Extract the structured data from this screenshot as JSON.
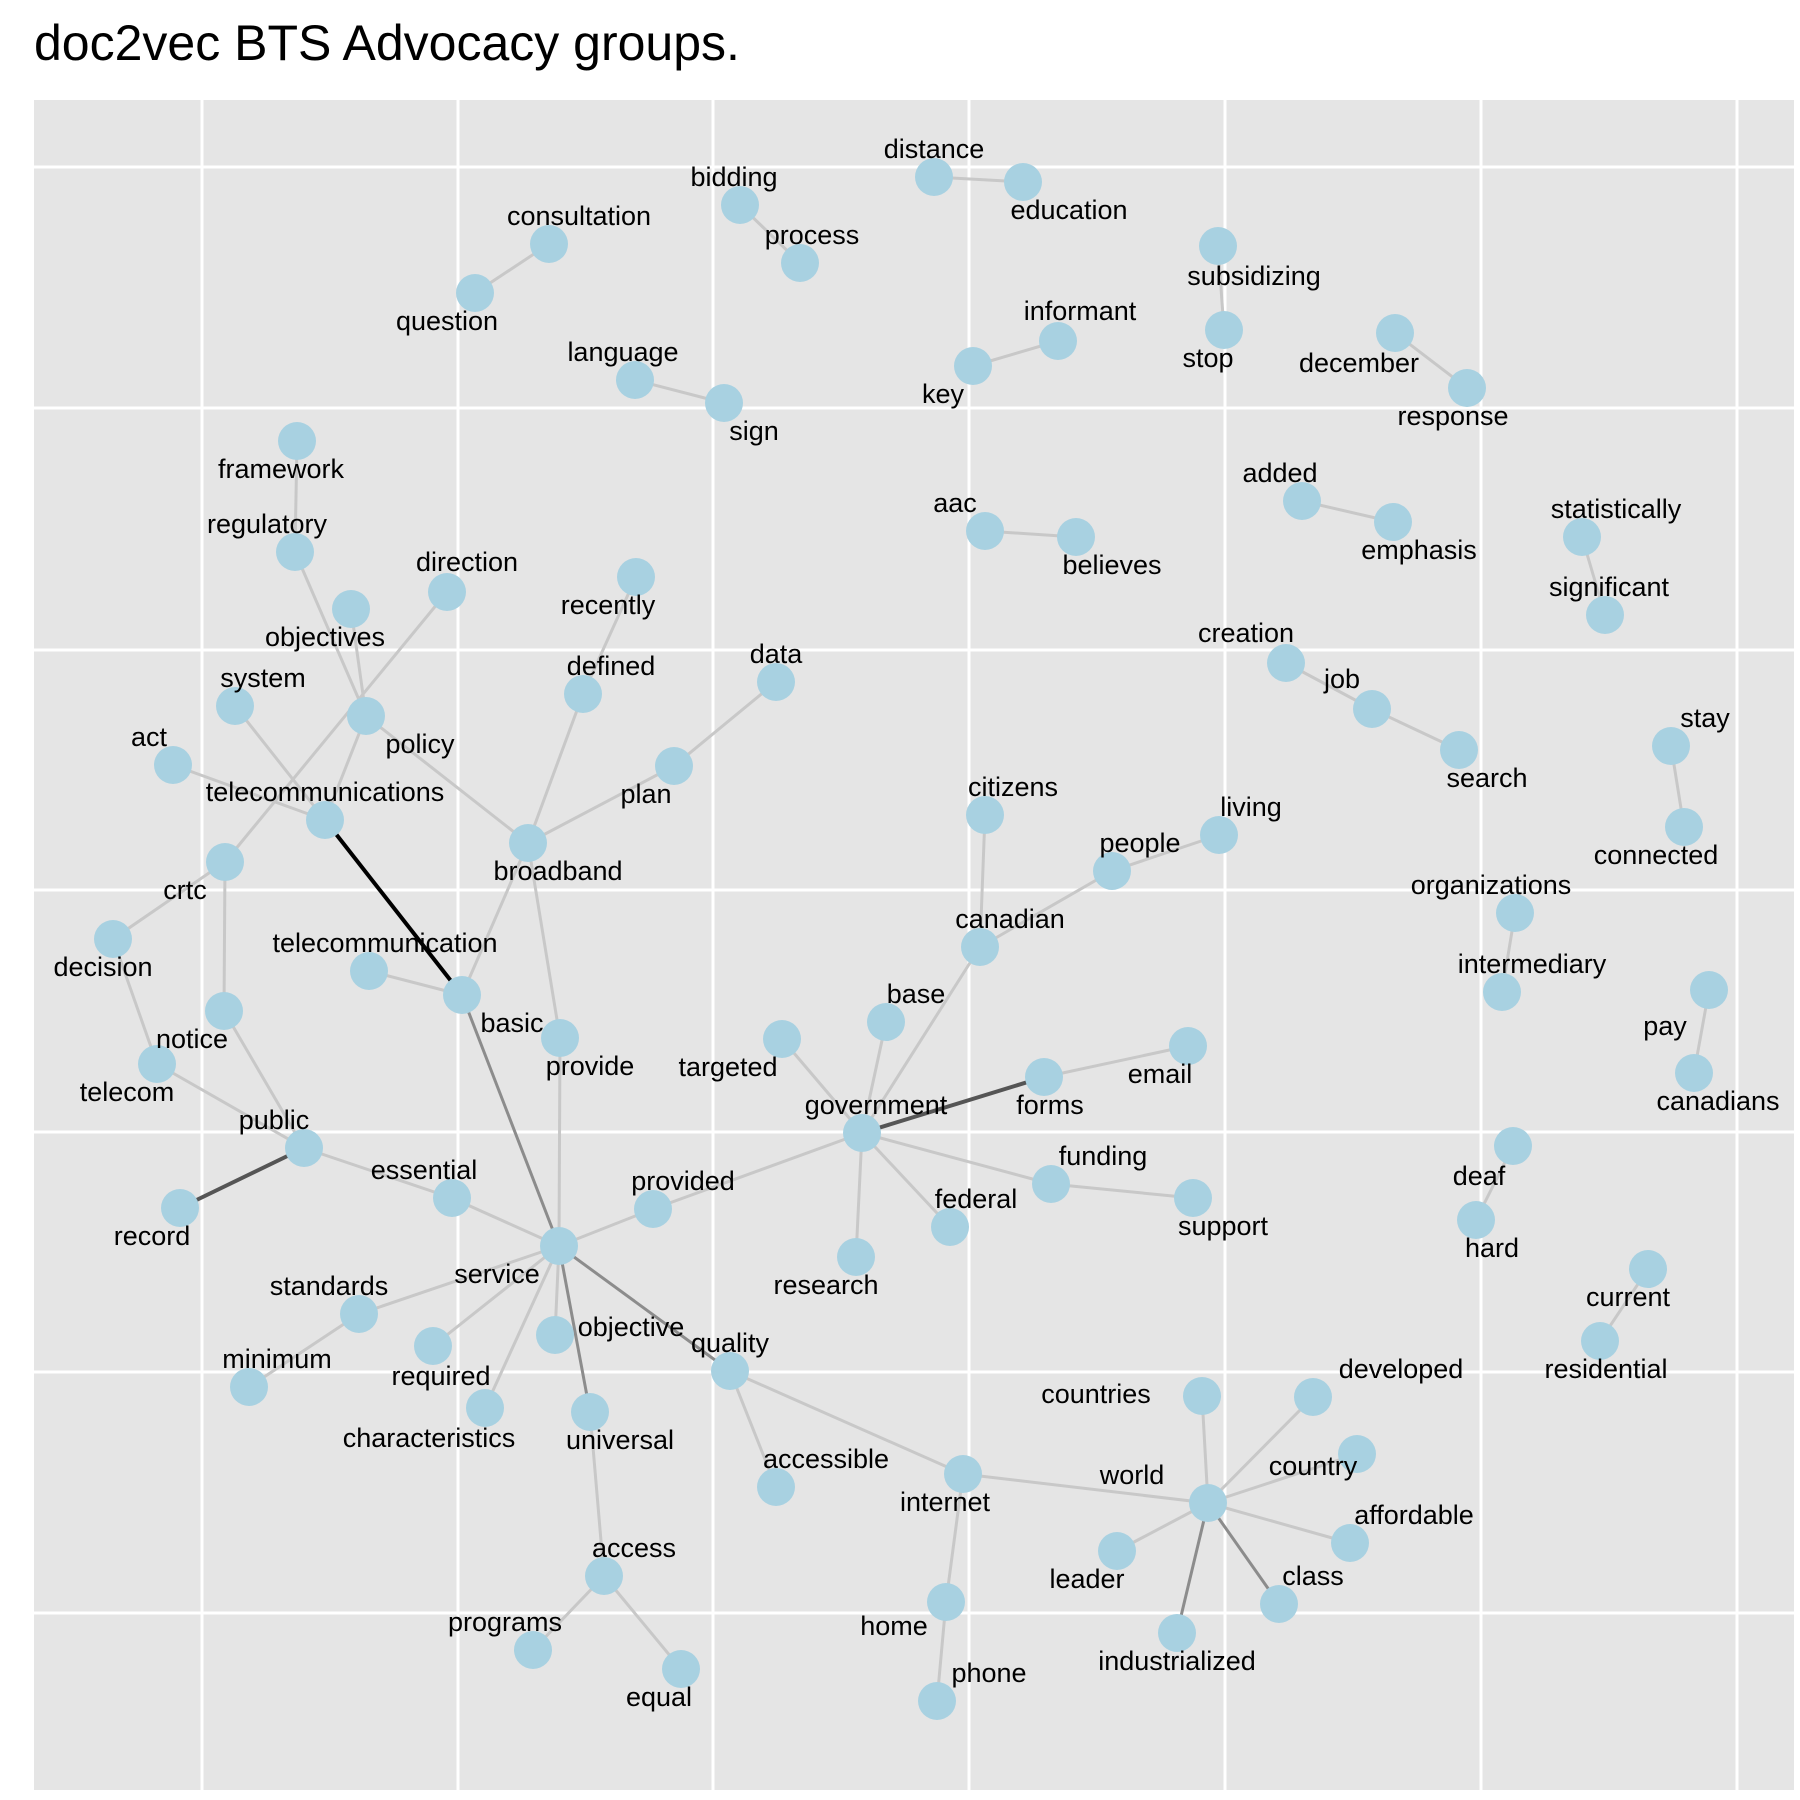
{
  "title": "doc2vec BTS Advocacy groups.",
  "colors": {
    "panel_background": "#e5e5e5",
    "grid_line": "#ffffff",
    "node_fill": "#a8d1e1",
    "edge_light": "#c8c8c8",
    "edge_medium": "#8c8c8c",
    "edge_dark": "#555555",
    "edge_darkest": "#000000"
  },
  "nodes": [
    {
      "id": "distance",
      "label": "distance"
    },
    {
      "id": "education",
      "label": "education"
    },
    {
      "id": "bidding",
      "label": "bidding"
    },
    {
      "id": "process",
      "label": "process"
    },
    {
      "id": "consultation",
      "label": "consultation"
    },
    {
      "id": "question",
      "label": "question"
    },
    {
      "id": "subsidizing",
      "label": "subsidizing"
    },
    {
      "id": "stop",
      "label": "stop"
    },
    {
      "id": "informant",
      "label": "informant"
    },
    {
      "id": "key",
      "label": "key"
    },
    {
      "id": "december",
      "label": "december"
    },
    {
      "id": "response",
      "label": "response"
    },
    {
      "id": "language",
      "label": "language"
    },
    {
      "id": "sign",
      "label": "sign"
    },
    {
      "id": "framework",
      "label": "framework"
    },
    {
      "id": "regulatory",
      "label": "regulatory"
    },
    {
      "id": "added",
      "label": "added"
    },
    {
      "id": "emphasis",
      "label": "emphasis"
    },
    {
      "id": "aac",
      "label": "aac"
    },
    {
      "id": "believes",
      "label": "believes"
    },
    {
      "id": "statistically",
      "label": "statistically"
    },
    {
      "id": "significant",
      "label": "significant"
    },
    {
      "id": "direction",
      "label": "direction"
    },
    {
      "id": "objectives",
      "label": "objectives"
    },
    {
      "id": "recently",
      "label": "recently"
    },
    {
      "id": "creation",
      "label": "creation"
    },
    {
      "id": "job",
      "label": "job"
    },
    {
      "id": "search",
      "label": "search"
    },
    {
      "id": "system",
      "label": "system"
    },
    {
      "id": "policy",
      "label": "policy"
    },
    {
      "id": "defined",
      "label": "defined"
    },
    {
      "id": "data",
      "label": "data"
    },
    {
      "id": "stay",
      "label": "stay"
    },
    {
      "id": "connected",
      "label": "connected"
    },
    {
      "id": "act",
      "label": "act"
    },
    {
      "id": "telecommunications",
      "label": "telecommunications"
    },
    {
      "id": "plan",
      "label": "plan"
    },
    {
      "id": "citizens",
      "label": "citizens"
    },
    {
      "id": "living",
      "label": "living"
    },
    {
      "id": "people",
      "label": "people"
    },
    {
      "id": "broadband",
      "label": "broadband"
    },
    {
      "id": "crtc",
      "label": "crtc"
    },
    {
      "id": "organizations",
      "label": "organizations"
    },
    {
      "id": "intermediary",
      "label": "intermediary"
    },
    {
      "id": "decision",
      "label": "decision"
    },
    {
      "id": "telecommunication",
      "label": "telecommunication"
    },
    {
      "id": "canadian",
      "label": "canadian"
    },
    {
      "id": "basic",
      "label": "basic"
    },
    {
      "id": "base",
      "label": "base"
    },
    {
      "id": "pay",
      "label": "pay"
    },
    {
      "id": "canadians",
      "label": "canadians"
    },
    {
      "id": "notice",
      "label": "notice"
    },
    {
      "id": "provide",
      "label": "provide"
    },
    {
      "id": "targeted",
      "label": "targeted"
    },
    {
      "id": "email",
      "label": "email"
    },
    {
      "id": "forms",
      "label": "forms"
    },
    {
      "id": "telecom",
      "label": "telecom"
    },
    {
      "id": "government",
      "label": "government"
    },
    {
      "id": "public",
      "label": "public"
    },
    {
      "id": "deaf",
      "label": "deaf"
    },
    {
      "id": "funding",
      "label": "funding"
    },
    {
      "id": "essential",
      "label": "essential"
    },
    {
      "id": "record",
      "label": "record"
    },
    {
      "id": "provided",
      "label": "provided"
    },
    {
      "id": "support",
      "label": "support"
    },
    {
      "id": "federal",
      "label": "federal"
    },
    {
      "id": "hard",
      "label": "hard"
    },
    {
      "id": "service",
      "label": "service"
    },
    {
      "id": "research",
      "label": "research"
    },
    {
      "id": "current",
      "label": "current"
    },
    {
      "id": "standards",
      "label": "standards"
    },
    {
      "id": "objective",
      "label": "objective"
    },
    {
      "id": "quality",
      "label": "quality"
    },
    {
      "id": "residential",
      "label": "residential"
    },
    {
      "id": "minimum",
      "label": "minimum"
    },
    {
      "id": "required",
      "label": "required"
    },
    {
      "id": "countries",
      "label": "countries"
    },
    {
      "id": "developed",
      "label": "developed"
    },
    {
      "id": "characteristics",
      "label": "characteristics"
    },
    {
      "id": "universal",
      "label": "universal"
    },
    {
      "id": "country",
      "label": "country"
    },
    {
      "id": "accessible",
      "label": "accessible"
    },
    {
      "id": "internet",
      "label": "internet"
    },
    {
      "id": "world",
      "label": "world"
    },
    {
      "id": "affordable",
      "label": "affordable"
    },
    {
      "id": "access",
      "label": "access"
    },
    {
      "id": "leader",
      "label": "leader"
    },
    {
      "id": "class",
      "label": "class"
    },
    {
      "id": "home",
      "label": "home"
    },
    {
      "id": "programs",
      "label": "programs"
    },
    {
      "id": "industrialized",
      "label": "industrialized"
    },
    {
      "id": "equal",
      "label": "equal"
    },
    {
      "id": "phone",
      "label": "phone"
    }
  ],
  "edges": [
    {
      "source": "distance",
      "target": "education",
      "strength": "light"
    },
    {
      "source": "bidding",
      "target": "process",
      "strength": "light"
    },
    {
      "source": "consultation",
      "target": "question",
      "strength": "light"
    },
    {
      "source": "subsidizing",
      "target": "stop",
      "strength": "light"
    },
    {
      "source": "informant",
      "target": "key",
      "strength": "light"
    },
    {
      "source": "december",
      "target": "response",
      "strength": "light"
    },
    {
      "source": "language",
      "target": "sign",
      "strength": "light"
    },
    {
      "source": "framework",
      "target": "regulatory",
      "strength": "light"
    },
    {
      "source": "added",
      "target": "emphasis",
      "strength": "light"
    },
    {
      "source": "aac",
      "target": "believes",
      "strength": "light"
    },
    {
      "source": "statistically",
      "target": "significant",
      "strength": "light"
    },
    {
      "source": "creation",
      "target": "job",
      "strength": "light"
    },
    {
      "source": "job",
      "target": "search",
      "strength": "light"
    },
    {
      "source": "stay",
      "target": "connected",
      "strength": "light"
    },
    {
      "source": "organizations",
      "target": "intermediary",
      "strength": "light"
    },
    {
      "source": "pay",
      "target": "canadians",
      "strength": "light"
    },
    {
      "source": "deaf",
      "target": "hard",
      "strength": "light"
    },
    {
      "source": "current",
      "target": "residential",
      "strength": "light"
    },
    {
      "source": "regulatory",
      "target": "policy",
      "strength": "light"
    },
    {
      "source": "objectives",
      "target": "policy",
      "strength": "light"
    },
    {
      "source": "direction",
      "target": "crtc",
      "strength": "light"
    },
    {
      "source": "policy",
      "target": "telecommunications",
      "strength": "light"
    },
    {
      "source": "policy",
      "target": "broadband",
      "strength": "light"
    },
    {
      "source": "system",
      "target": "telecommunications",
      "strength": "light"
    },
    {
      "source": "act",
      "target": "telecommunications",
      "strength": "light"
    },
    {
      "source": "telecommunications",
      "target": "basic",
      "strength": "darkest"
    },
    {
      "source": "recently",
      "target": "defined",
      "strength": "light"
    },
    {
      "source": "defined",
      "target": "broadband",
      "strength": "light"
    },
    {
      "source": "data",
      "target": "plan",
      "strength": "light"
    },
    {
      "source": "plan",
      "target": "broadband",
      "strength": "light"
    },
    {
      "source": "broadband",
      "target": "basic",
      "strength": "light"
    },
    {
      "source": "broadband",
      "target": "provide",
      "strength": "light"
    },
    {
      "source": "crtc",
      "target": "decision",
      "strength": "light"
    },
    {
      "source": "crtc",
      "target": "notice",
      "strength": "light"
    },
    {
      "source": "decision",
      "target": "telecom",
      "strength": "light"
    },
    {
      "source": "telecom",
      "target": "public",
      "strength": "light"
    },
    {
      "source": "notice",
      "target": "public",
      "strength": "light"
    },
    {
      "source": "public",
      "target": "record",
      "strength": "dark"
    },
    {
      "source": "public",
      "target": "essential",
      "strength": "light"
    },
    {
      "source": "telecommunication",
      "target": "basic",
      "strength": "light"
    },
    {
      "source": "basic",
      "target": "service",
      "strength": "medium"
    },
    {
      "source": "provide",
      "target": "service",
      "strength": "light"
    },
    {
      "source": "essential",
      "target": "service",
      "strength": "light"
    },
    {
      "source": "citizens",
      "target": "canadian",
      "strength": "light"
    },
    {
      "source": "living",
      "target": "people",
      "strength": "light"
    },
    {
      "source": "people",
      "target": "canadian",
      "strength": "light"
    },
    {
      "source": "canadian",
      "target": "government",
      "strength": "light"
    },
    {
      "source": "base",
      "target": "government",
      "strength": "light"
    },
    {
      "source": "targeted",
      "target": "government",
      "strength": "light"
    },
    {
      "source": "email",
      "target": "forms",
      "strength": "light"
    },
    {
      "source": "forms",
      "target": "government",
      "strength": "dark"
    },
    {
      "source": "government",
      "target": "federal",
      "strength": "light"
    },
    {
      "source": "government",
      "target": "funding",
      "strength": "light"
    },
    {
      "source": "funding",
      "target": "support",
      "strength": "light"
    },
    {
      "source": "government",
      "target": "research",
      "strength": "light"
    },
    {
      "source": "government",
      "target": "provided",
      "strength": "light"
    },
    {
      "source": "provided",
      "target": "service",
      "strength": "light"
    },
    {
      "source": "service",
      "target": "standards",
      "strength": "light"
    },
    {
      "source": "standards",
      "target": "minimum",
      "strength": "light"
    },
    {
      "source": "service",
      "target": "required",
      "strength": "light"
    },
    {
      "source": "service",
      "target": "characteristics",
      "strength": "light"
    },
    {
      "source": "service",
      "target": "objective",
      "strength": "light"
    },
    {
      "source": "service",
      "target": "universal",
      "strength": "medium"
    },
    {
      "source": "service",
      "target": "quality",
      "strength": "medium"
    },
    {
      "source": "universal",
      "target": "access",
      "strength": "light"
    },
    {
      "source": "access",
      "target": "programs",
      "strength": "light"
    },
    {
      "source": "access",
      "target": "equal",
      "strength": "light"
    },
    {
      "source": "quality",
      "target": "accessible",
      "strength": "light"
    },
    {
      "source": "quality",
      "target": "internet",
      "strength": "light"
    },
    {
      "source": "internet",
      "target": "home",
      "strength": "light"
    },
    {
      "source": "home",
      "target": "phone",
      "strength": "light"
    },
    {
      "source": "internet",
      "target": "world",
      "strength": "light"
    },
    {
      "source": "countries",
      "target": "world",
      "strength": "light"
    },
    {
      "source": "developed",
      "target": "world",
      "strength": "light"
    },
    {
      "source": "country",
      "target": "world",
      "strength": "light"
    },
    {
      "source": "world",
      "target": "affordable",
      "strength": "light"
    },
    {
      "source": "world",
      "target": "leader",
      "strength": "light"
    },
    {
      "source": "world",
      "target": "class",
      "strength": "medium"
    },
    {
      "source": "world",
      "target": "industrialized",
      "strength": "medium"
    }
  ]
}
